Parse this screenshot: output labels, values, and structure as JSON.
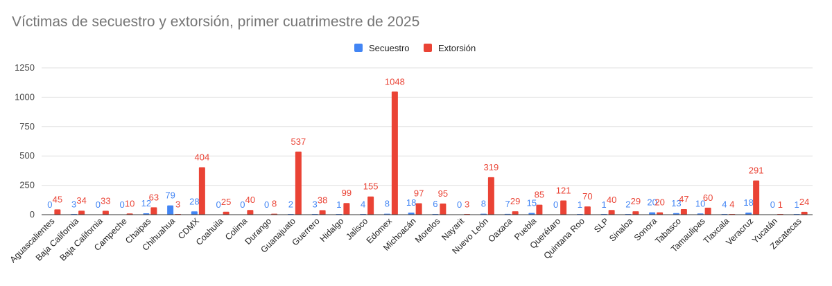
{
  "chart_data": {
    "type": "bar",
    "title": "Víctimas de secuestro y extorsión, primer cuatrimestre de 2025",
    "xlabel": "",
    "ylabel": "",
    "ylim": [
      0,
      1250
    ],
    "yticks": [
      0,
      250,
      500,
      750,
      1000,
      1250
    ],
    "grid": true,
    "legend_position": "top",
    "categories": [
      "Aguascalientes",
      "Baja California",
      "Baja California",
      "Campeche",
      "Chaipas",
      "Chihuahua",
      "CDMX",
      "Coahuila",
      "Colima",
      "Durango",
      "Guanajuato",
      "Guerrero",
      "Hidalgo",
      "Jalisco",
      "Edomex",
      "Michoacán",
      "Morelos",
      "Nayarit",
      "Nuevo León",
      "Oaxaca",
      "Puebla",
      "Querétaro",
      "Quintana Roo",
      "SLP",
      "Sinaloa",
      "Sonora",
      "Tabasco",
      "Tamaulipas",
      "Tlaxcala",
      "Veracruz",
      "Yucatán",
      "Zacatecas"
    ],
    "series": [
      {
        "name": "Secuestro",
        "color": "#4285f4",
        "values": [
          0,
          3,
          0,
          0,
          12,
          79,
          28,
          0,
          0,
          0,
          2,
          3,
          1,
          4,
          8,
          18,
          6,
          0,
          8,
          7,
          15,
          0,
          1,
          1,
          2,
          20,
          13,
          10,
          4,
          18,
          0,
          1
        ]
      },
      {
        "name": "Extorsión",
        "color": "#ea4335",
        "values": [
          45,
          34,
          33,
          10,
          63,
          3,
          404,
          25,
          40,
          8,
          537,
          38,
          99,
          155,
          1048,
          97,
          95,
          3,
          319,
          29,
          85,
          121,
          70,
          40,
          29,
          20,
          47,
          60,
          4,
          291,
          1,
          24
        ]
      }
    ]
  }
}
